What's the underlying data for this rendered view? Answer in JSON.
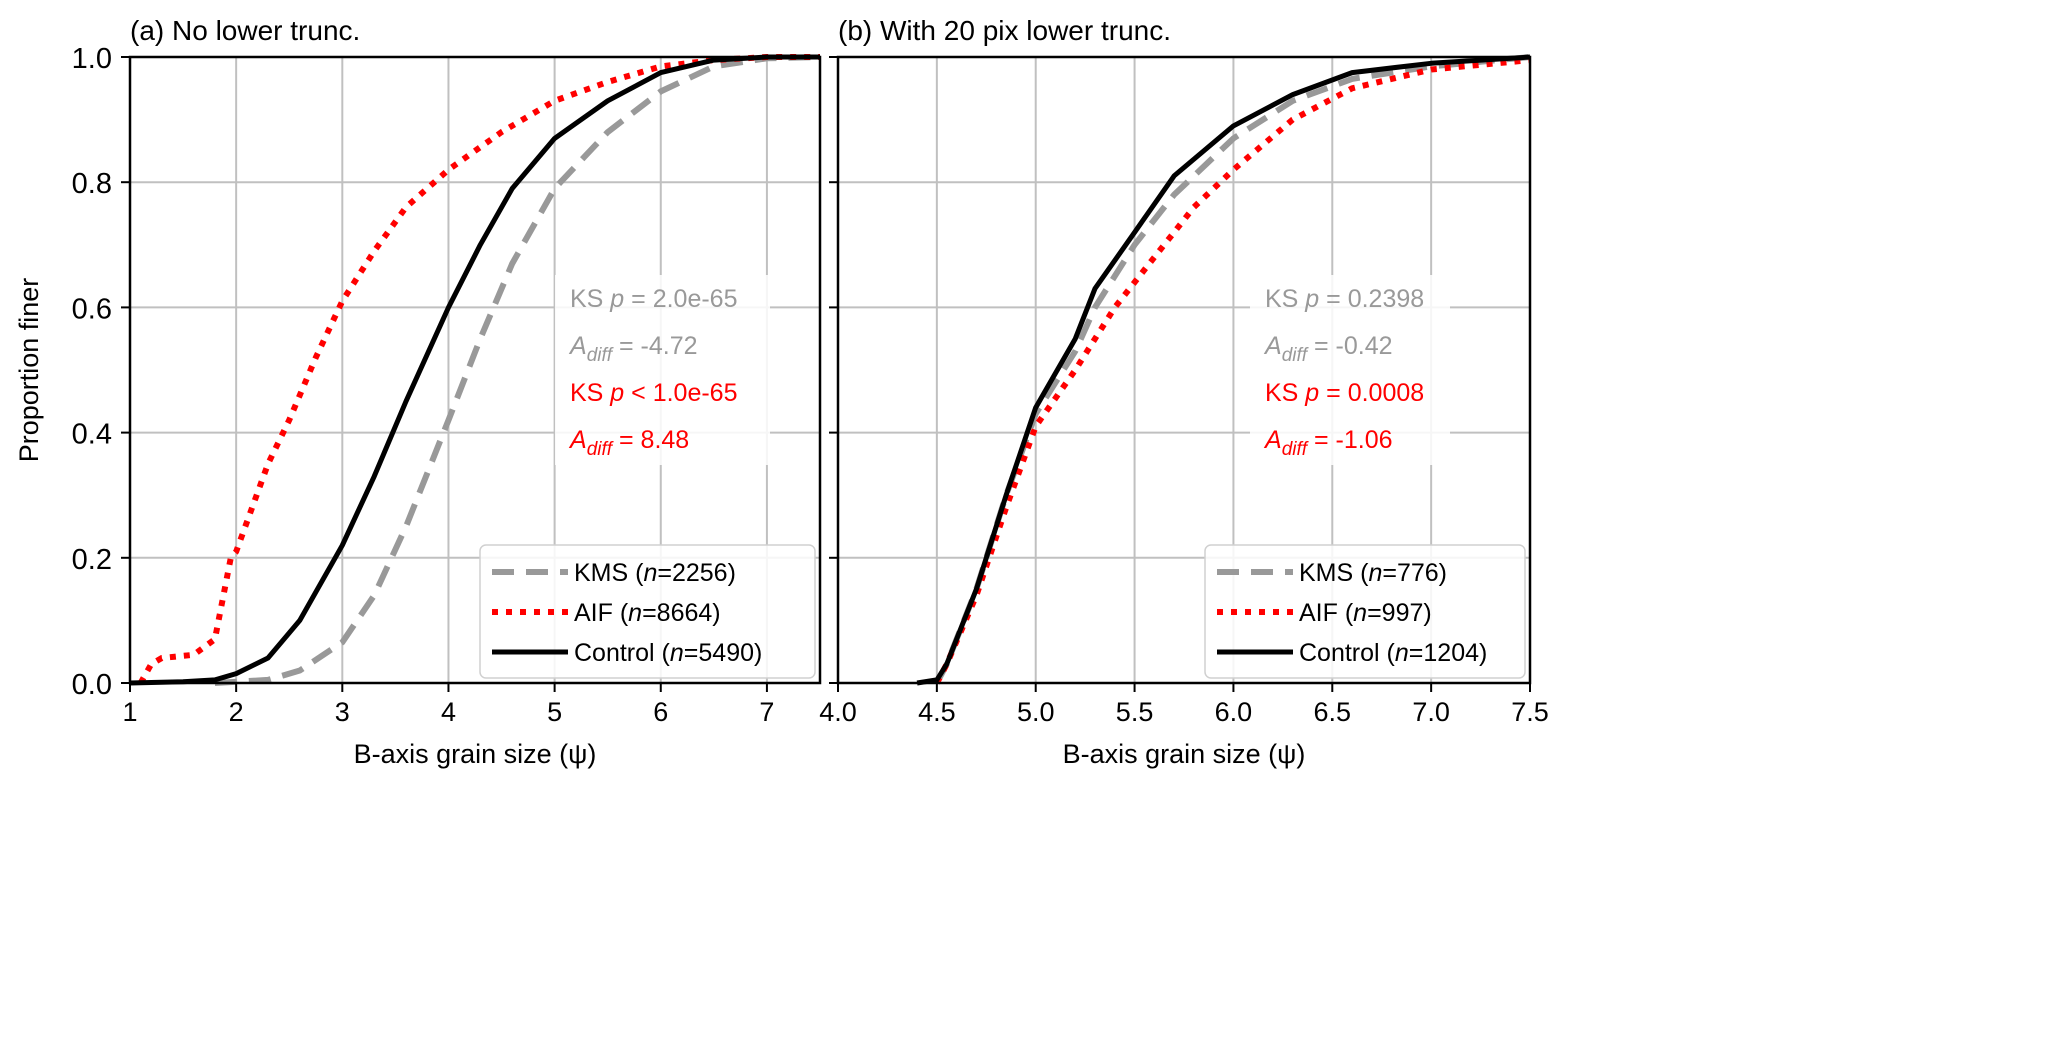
{
  "chart_data": [
    {
      "type": "line",
      "title": "(a) No lower trunc.",
      "xlabel": "B-axis grain size (ψ)",
      "ylabel": "Proportion finer",
      "xlim": [
        1,
        7.5
      ],
      "ylim": [
        0,
        1
      ],
      "xticks": [
        "1",
        "2",
        "3",
        "4",
        "5",
        "6",
        "7"
      ],
      "xtick_values": [
        1,
        2,
        3,
        4,
        5,
        6,
        7
      ],
      "yticks": [
        "0.0",
        "0.2",
        "0.4",
        "0.6",
        "0.8",
        "1.0"
      ],
      "ytick_values": [
        0,
        0.2,
        0.4,
        0.6,
        0.8,
        1.0
      ],
      "grid": true,
      "legend_placement": "bottom-right",
      "series": [
        {
          "name": "KMS",
          "n_label": "n",
          "n_value": "2256",
          "style": "dashed",
          "color": "#999999",
          "points": [
            [
              1.8,
              0
            ],
            [
              2.3,
              0.005
            ],
            [
              2.6,
              0.02
            ],
            [
              3,
              0.065
            ],
            [
              3.3,
              0.14
            ],
            [
              3.6,
              0.25
            ],
            [
              4,
              0.42
            ],
            [
              4.3,
              0.55
            ],
            [
              4.6,
              0.67
            ],
            [
              5,
              0.79
            ],
            [
              5.5,
              0.88
            ],
            [
              6,
              0.945
            ],
            [
              6.5,
              0.985
            ],
            [
              7,
              0.998
            ],
            [
              7.5,
              1
            ]
          ]
        },
        {
          "name": "AIF",
          "n_label": "n",
          "n_value": "8664",
          "style": "dotted",
          "color": "#ff0000",
          "points": [
            [
              1.1,
              0
            ],
            [
              1.2,
              0.03
            ],
            [
              1.3,
              0.04
            ],
            [
              1.6,
              0.045
            ],
            [
              1.8,
              0.07
            ],
            [
              1.95,
              0.2
            ],
            [
              2.0,
              0.21
            ],
            [
              2.3,
              0.35
            ],
            [
              2.5,
              0.42
            ],
            [
              2.75,
              0.52
            ],
            [
              3,
              0.61
            ],
            [
              3.3,
              0.69
            ],
            [
              3.6,
              0.76
            ],
            [
              4,
              0.82
            ],
            [
              4.5,
              0.88
            ],
            [
              5,
              0.93
            ],
            [
              5.5,
              0.96
            ],
            [
              6,
              0.985
            ],
            [
              6.5,
              0.995
            ],
            [
              7,
              1
            ],
            [
              7.5,
              1
            ]
          ]
        },
        {
          "name": "Control",
          "n_label": "n",
          "n_value": "5490",
          "style": "solid",
          "color": "#000000",
          "points": [
            [
              1,
              0
            ],
            [
              1.5,
              0.002
            ],
            [
              1.8,
              0.005
            ],
            [
              2,
              0.015
            ],
            [
              2.3,
              0.04
            ],
            [
              2.6,
              0.1
            ],
            [
              3,
              0.22
            ],
            [
              3.3,
              0.33
            ],
            [
              3.6,
              0.45
            ],
            [
              4,
              0.6
            ],
            [
              4.3,
              0.7
            ],
            [
              4.6,
              0.79
            ],
            [
              5,
              0.87
            ],
            [
              5.5,
              0.93
            ],
            [
              6,
              0.975
            ],
            [
              6.5,
              0.995
            ],
            [
              7,
              1
            ],
            [
              7.5,
              1
            ]
          ]
        }
      ],
      "annotations": [
        {
          "prefix": "KS ",
          "italic": "p",
          "sub": "",
          "text": " = 2.0e-65",
          "color": "#999999"
        },
        {
          "prefix": "",
          "italic": "A",
          "sub": "diff",
          "text": " = -4.72",
          "color": "#999999"
        },
        {
          "prefix": "KS ",
          "italic": "p",
          "sub": "",
          "text": " < 1.0e-65",
          "color": "#ff0000"
        },
        {
          "prefix": "",
          "italic": "A",
          "sub": "diff",
          "text": " = 8.48",
          "color": "#ff0000"
        }
      ]
    },
    {
      "type": "line",
      "title": "(b) With 20 pix lower trunc.",
      "xlabel": "B-axis grain size (ψ)",
      "ylabel": "",
      "xlim": [
        4.0,
        7.5
      ],
      "ylim": [
        0,
        1
      ],
      "xticks": [
        "4.0",
        "4.5",
        "5.0",
        "5.5",
        "6.0",
        "6.5",
        "7.0",
        "7.5"
      ],
      "xtick_values": [
        4.0,
        4.5,
        5.0,
        5.5,
        6.0,
        6.5,
        7.0,
        7.5
      ],
      "yticks": [],
      "ytick_values": [
        0,
        0.2,
        0.4,
        0.6,
        0.8,
        1.0
      ],
      "grid": true,
      "legend_placement": "bottom-right",
      "series": [
        {
          "name": "KMS",
          "n_label": "n",
          "n_value": "776",
          "style": "dashed",
          "color": "#999999",
          "points": [
            [
              4.5,
              0
            ],
            [
              4.55,
              0.03
            ],
            [
              4.7,
              0.15
            ],
            [
              4.85,
              0.3
            ],
            [
              5,
              0.43
            ],
            [
              5.2,
              0.53
            ],
            [
              5.3,
              0.6
            ],
            [
              5.5,
              0.7
            ],
            [
              5.7,
              0.78
            ],
            [
              6.0,
              0.87
            ],
            [
              6.3,
              0.93
            ],
            [
              6.6,
              0.965
            ],
            [
              7,
              0.985
            ],
            [
              7.5,
              1
            ]
          ]
        },
        {
          "name": "AIF",
          "n_label": "n",
          "n_value": "997",
          "style": "dotted",
          "color": "#ff0000",
          "points": [
            [
              4.5,
              0
            ],
            [
              4.55,
              0.03
            ],
            [
              4.7,
              0.14
            ],
            [
              4.85,
              0.28
            ],
            [
              5,
              0.41
            ],
            [
              5.2,
              0.5
            ],
            [
              5.4,
              0.6
            ],
            [
              5.6,
              0.68
            ],
            [
              5.8,
              0.76
            ],
            [
              6.0,
              0.82
            ],
            [
              6.3,
              0.9
            ],
            [
              6.6,
              0.95
            ],
            [
              7,
              0.98
            ],
            [
              7.5,
              0.995
            ]
          ]
        },
        {
          "name": "Control",
          "n_label": "n",
          "n_value": "1204",
          "style": "solid",
          "color": "#000000",
          "points": [
            [
              4.4,
              0
            ],
            [
              4.5,
              0.005
            ],
            [
              4.55,
              0.03
            ],
            [
              4.7,
              0.15
            ],
            [
              4.85,
              0.3
            ],
            [
              5.0,
              0.44
            ],
            [
              5.2,
              0.55
            ],
            [
              5.3,
              0.63
            ],
            [
              5.5,
              0.72
            ],
            [
              5.7,
              0.81
            ],
            [
              6.0,
              0.89
            ],
            [
              6.3,
              0.94
            ],
            [
              6.6,
              0.975
            ],
            [
              7,
              0.99
            ],
            [
              7.5,
              1
            ]
          ]
        }
      ],
      "annotations": [
        {
          "prefix": "KS ",
          "italic": "p",
          "sub": "",
          "text": " = 0.2398",
          "color": "#999999"
        },
        {
          "prefix": "",
          "italic": "A",
          "sub": "diff",
          "text": " = -0.42",
          "color": "#999999"
        },
        {
          "prefix": "KS ",
          "italic": "p",
          "sub": "",
          "text": " = 0.0008",
          "color": "#ff0000"
        },
        {
          "prefix": "",
          "italic": "A",
          "sub": "diff",
          "text": " = -1.06",
          "color": "#ff0000"
        }
      ]
    }
  ]
}
